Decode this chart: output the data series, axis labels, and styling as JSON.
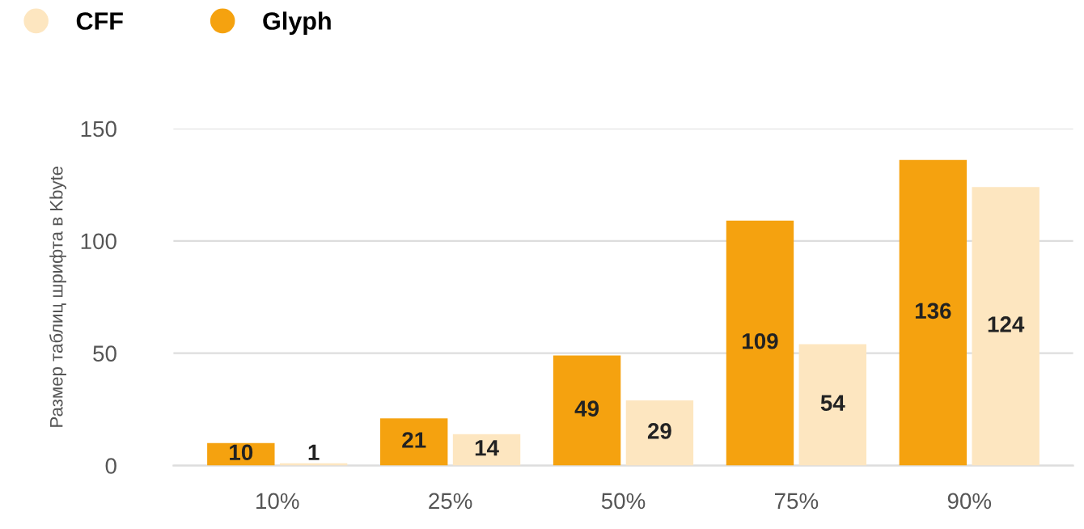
{
  "chart_data": {
    "type": "bar",
    "categories": [
      "10%",
      "25%",
      "50%",
      "75%",
      "90%"
    ],
    "series": [
      {
        "name": "Glyph",
        "color": "#f5a20f",
        "values": [
          10,
          21,
          49,
          109,
          136
        ]
      },
      {
        "name": "CFF",
        "color": "#fde6c0",
        "values": [
          1,
          14,
          29,
          54,
          124
        ]
      }
    ],
    "ylabel": "Размер таблиц шрифта в Kbyte",
    "ylim": [
      0,
      150
    ],
    "yticks": [
      0,
      50,
      100,
      150
    ],
    "grid": "y",
    "legend": "top left",
    "data_labels": true
  }
}
